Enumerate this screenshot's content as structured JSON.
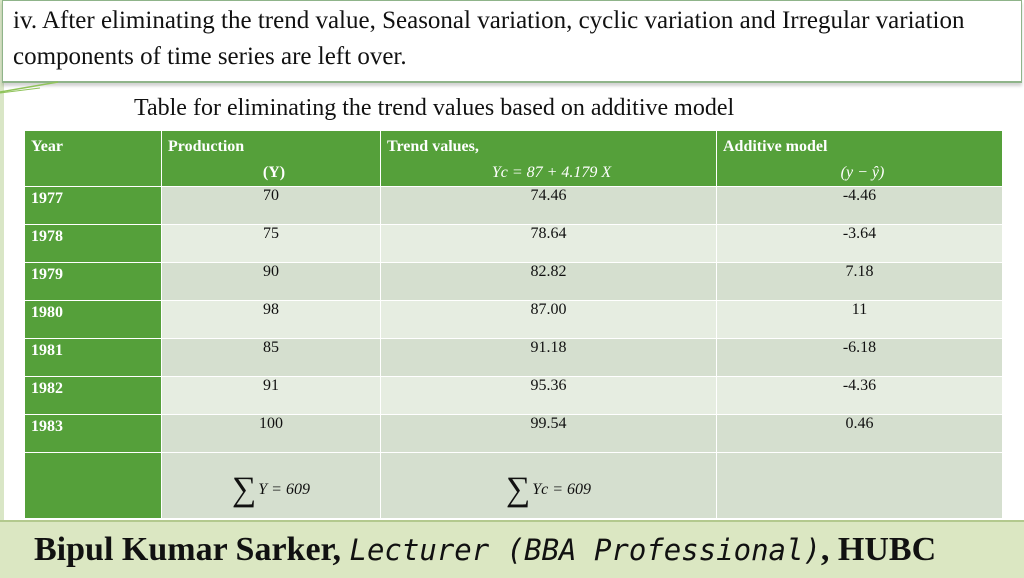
{
  "intro": {
    "text": "iv. After eliminating the trend value, Seasonal variation, cyclic variation and Irregular variation components of time series are left over."
  },
  "table": {
    "title": "Table for eliminating the trend values based on additive model",
    "headers": {
      "year": "Year",
      "production": "Production",
      "production_sub": "(Y)",
      "trend": "Trend values,",
      "trend_sub": "Yc = 87 + 4.179 X",
      "additive": "Additive model",
      "additive_sub": "(y − ŷ)"
    },
    "rows": [
      {
        "year": "1977",
        "production": "70",
        "trend": "74.46",
        "additive": "-4.46"
      },
      {
        "year": "1978",
        "production": "75",
        "trend": "78.64",
        "additive": "-3.64"
      },
      {
        "year": "1979",
        "production": "90",
        "trend": "82.82",
        "additive": "7.18"
      },
      {
        "year": "1980",
        "production": "98",
        "trend": "87.00",
        "additive": "11"
      },
      {
        "year": "1981",
        "production": "85",
        "trend": "91.18",
        "additive": "-6.18"
      },
      {
        "year": "1982",
        "production": "91",
        "trend": "95.36",
        "additive": "-4.36"
      },
      {
        "year": "1983",
        "production": "100",
        "trend": "99.54",
        "additive": "0.46"
      }
    ],
    "totals": {
      "sigma": "∑",
      "production": "Y = 609",
      "trend": "Yc = 609"
    }
  },
  "footer": {
    "name": "Bipul Kumar Sarker,",
    "title": "Lecturer (BBA Professional)",
    "org": ", HUBC"
  },
  "colors": {
    "header_green": "#55a03a",
    "row_light": "#d5dfcf",
    "footer_bg": "#dbe7c2"
  }
}
